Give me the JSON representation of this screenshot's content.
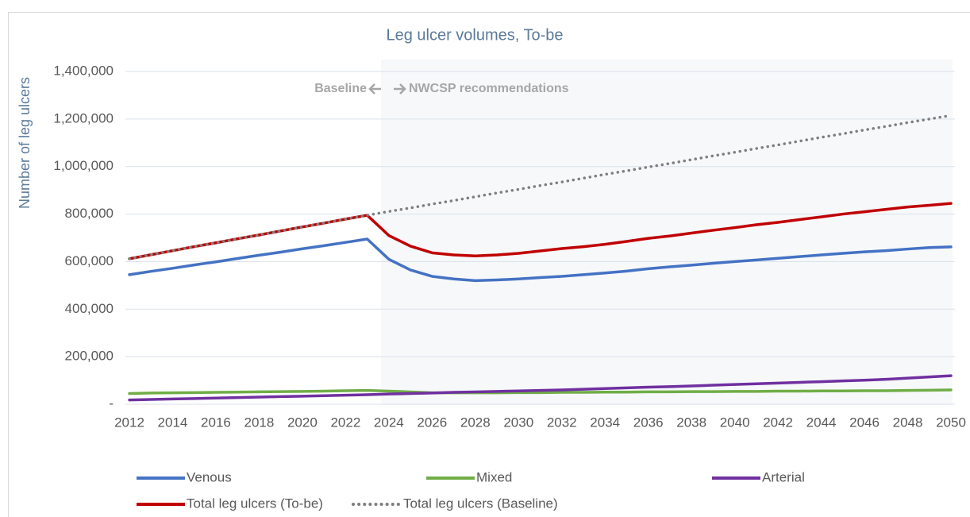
{
  "chart_data": {
    "type": "line",
    "title": "Leg ulcer volumes, To-be",
    "y_label": "Number of leg ulcers",
    "annotations": [
      "Baseline",
      "NWCSP recommendations"
    ],
    "x": [
      2012,
      2013,
      2014,
      2015,
      2016,
      2017,
      2018,
      2019,
      2020,
      2021,
      2022,
      2023,
      2024,
      2025,
      2026,
      2027,
      2028,
      2029,
      2030,
      2031,
      2032,
      2033,
      2034,
      2035,
      2036,
      2037,
      2038,
      2039,
      2040,
      2041,
      2042,
      2043,
      2044,
      2045,
      2046,
      2047,
      2048,
      2049,
      2050
    ],
    "xlim": [
      2012,
      2050
    ],
    "xticks": [
      2012,
      2014,
      2016,
      2018,
      2020,
      2022,
      2024,
      2026,
      2028,
      2030,
      2032,
      2034,
      2036,
      2038,
      2040,
      2042,
      2044,
      2046,
      2048,
      2050
    ],
    "ylim": [
      0,
      1400000
    ],
    "yticks": [
      {
        "value": 0,
        "label": "-"
      },
      {
        "value": 200000,
        "label": "200,000"
      },
      {
        "value": 400000,
        "label": "400,000"
      },
      {
        "value": 600000,
        "label": "600,000"
      },
      {
        "value": 800000,
        "label": "800,000"
      },
      {
        "value": 1000000,
        "label": "1,000,000"
      },
      {
        "value": 1200000,
        "label": "1,200,000"
      },
      {
        "value": 1400000,
        "label": "1,400,000"
      }
    ],
    "grid": true,
    "legend": "bottom",
    "series": [
      {
        "name": "Venous",
        "color": "#4472c4",
        "style": "solid",
        "values": [
          545000,
          559000,
          572000,
          586000,
          599000,
          613000,
          627000,
          640000,
          654000,
          667000,
          681000,
          695000,
          610000,
          565000,
          538000,
          527000,
          520000,
          523000,
          527000,
          533000,
          538000,
          545000,
          552000,
          560000,
          570000,
          578000,
          585000,
          593000,
          600000,
          607000,
          614000,
          621000,
          628000,
          635000,
          641000,
          646000,
          653000,
          659000,
          662000
        ]
      },
      {
        "name": "Mixed",
        "color": "#70ad47",
        "style": "solid",
        "values": [
          45000,
          47000,
          48000,
          49000,
          50000,
          51000,
          52000,
          53000,
          54000,
          55000,
          57000,
          58000,
          55000,
          52000,
          48000,
          48000,
          48000,
          48000,
          49000,
          49000,
          50000,
          50000,
          51000,
          51000,
          52000,
          52000,
          53000,
          53000,
          54000,
          54000,
          55000,
          55000,
          56000,
          56000,
          57000,
          57000,
          58000,
          59000,
          60000
        ]
      },
      {
        "name": "Arterial",
        "color": "#7030a0",
        "style": "solid",
        "values": [
          18000,
          20000,
          22000,
          24000,
          26000,
          28000,
          30000,
          32000,
          34000,
          36000,
          38000,
          40000,
          43000,
          45000,
          47000,
          50000,
          52000,
          54000,
          56000,
          58000,
          60000,
          63000,
          66000,
          69000,
          72000,
          74000,
          77000,
          80000,
          83000,
          86000,
          89000,
          92000,
          95000,
          98000,
          101000,
          105000,
          110000,
          115000,
          120000
        ]
      },
      {
        "name": "Total leg ulcers (To-be)",
        "color": "#c00000",
        "style": "solid",
        "values": [
          612000,
          629000,
          646000,
          663000,
          679000,
          696000,
          712000,
          729000,
          746000,
          762000,
          779000,
          795000,
          710000,
          665000,
          637000,
          628000,
          624000,
          628000,
          635000,
          645000,
          655000,
          663000,
          673000,
          685000,
          698000,
          708000,
          720000,
          732000,
          743000,
          755000,
          765000,
          777000,
          788000,
          800000,
          810000,
          820000,
          830000,
          837000,
          845000
        ]
      },
      {
        "name": "Total leg ulcers (Baseline)",
        "color": "#7f7f7f",
        "style": "dotted",
        "values": [
          612000,
          629000,
          646000,
          663000,
          679000,
          696000,
          712000,
          729000,
          746000,
          762000,
          779000,
          795000,
          811000,
          826000,
          842000,
          857000,
          873000,
          889000,
          904000,
          920000,
          935000,
          951000,
          967000,
          982000,
          998000,
          1013000,
          1029000,
          1045000,
          1060000,
          1076000,
          1091000,
          1107000,
          1123000,
          1138000,
          1154000,
          1169000,
          1185000,
          1200000,
          1215000
        ]
      }
    ]
  }
}
